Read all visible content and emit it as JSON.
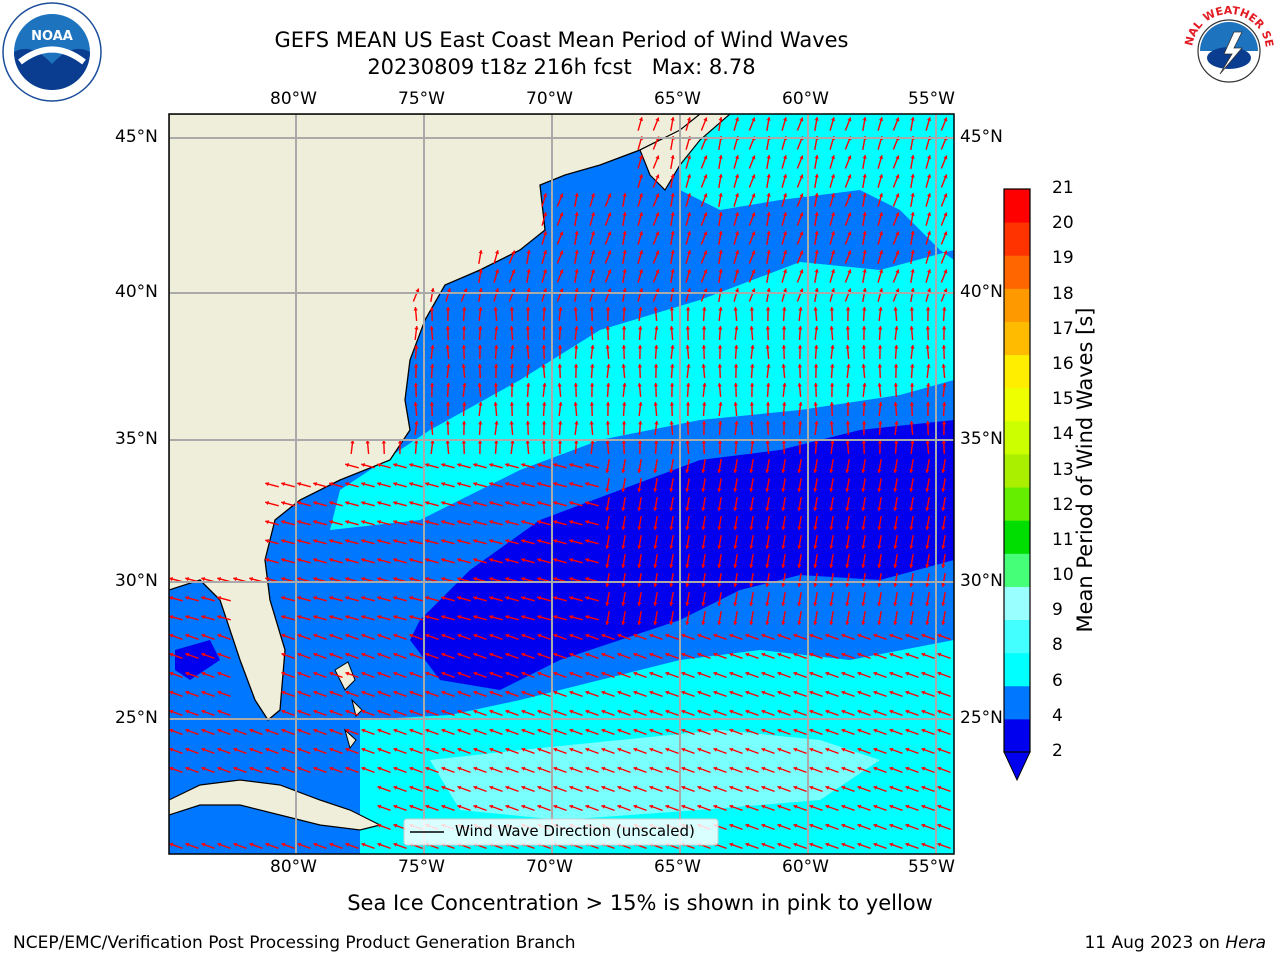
{
  "header": {
    "title_line1": "GEFS MEAN US East Coast Mean Period of Wind Waves",
    "title_line2": "20230809 t18z 216h fcst   Max: 8.78",
    "logo_left": "NOAA",
    "logo_left_ring": "NATIONAL OCEANIC AND ATMOSPHERIC ADMINISTRATION · U.S. DEPARTMENT OF COMMERCE",
    "logo_right_ring": "NATIONAL WEATHER SERVICE"
  },
  "map": {
    "lon_ticks": [
      "80°W",
      "75°W",
      "70°W",
      "65°W",
      "60°W",
      "55°W"
    ],
    "lat_ticks": [
      "45°N",
      "40°N",
      "35°N",
      "30°N",
      "25°N"
    ],
    "lon_range": [
      -85,
      -54.5
    ],
    "lat_range": [
      20.5,
      46.5
    ],
    "legend_label": "Wind Wave Direction (unscaled)",
    "land_color": "#efeedb",
    "arrow_color": "#ff0000"
  },
  "colorbar": {
    "label": "Mean Period of Wind Waves [s]",
    "ticks": [
      "21",
      "20",
      "19",
      "18",
      "17",
      "16",
      "15",
      "14",
      "13",
      "12",
      "11",
      "10",
      "9",
      "8",
      "6",
      "4",
      "2"
    ],
    "colors": [
      "#0000ee",
      "#0077ff",
      "#00ffff",
      "#44ffff",
      "#99ffff",
      "#44ff77",
      "#00dd00",
      "#66ee00",
      "#aaee00",
      "#ccff00",
      "#eeff00",
      "#ffee00",
      "#ffbb00",
      "#ff9900",
      "#ff6600",
      "#ff3300",
      "#ff0000"
    ]
  },
  "footer": {
    "note": "Sea Ice Concentration > 15% is shown in pink to yellow",
    "org": "NCEP/EMC/Verification Post Processing Product Generation Branch",
    "date": "11 Aug 2023 on ",
    "machine": "Hera"
  }
}
